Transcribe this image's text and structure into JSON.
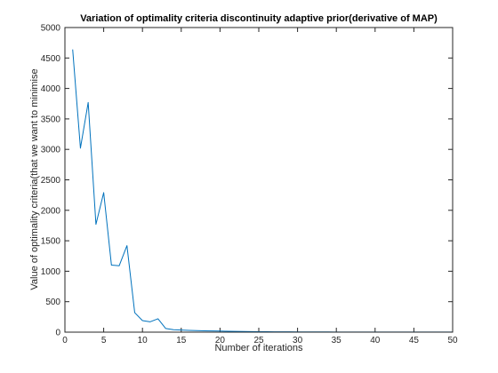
{
  "chart_data": {
    "type": "line",
    "title": "Variation of optimality criteria discontinuity adaptive prior(derivative of MAP)",
    "xlabel": "Number of iterations",
    "ylabel": "Value of optimality criteria(that we want to minimise",
    "xlim": [
      0,
      50
    ],
    "ylim": [
      0,
      5000
    ],
    "xticks": [
      0,
      5,
      10,
      15,
      20,
      25,
      30,
      35,
      40,
      45,
      50
    ],
    "yticks": [
      0,
      500,
      1000,
      1500,
      2000,
      2500,
      3000,
      3500,
      4000,
      4500,
      5000
    ],
    "grid": false,
    "series": [
      {
        "color": "#0072bd",
        "x": [
          1,
          2,
          3,
          4,
          5,
          6,
          7,
          8,
          9,
          10,
          11,
          12,
          13,
          14,
          15,
          16,
          17,
          18,
          19,
          20,
          21,
          22,
          23,
          24,
          25,
          26,
          27,
          28,
          29,
          30,
          31,
          32,
          33,
          34,
          35,
          36,
          37,
          38,
          39,
          40,
          41,
          42,
          43,
          44,
          45,
          46,
          47,
          48,
          49,
          50
        ],
        "y": [
          4640,
          3020,
          3770,
          1770,
          2290,
          1100,
          1090,
          1420,
          320,
          190,
          170,
          220,
          60,
          40,
          35,
          30,
          25,
          22,
          20,
          18,
          15,
          12,
          10,
          9,
          8,
          7,
          6,
          5,
          5,
          4,
          4,
          3,
          3,
          3,
          2,
          2,
          2,
          2,
          1,
          1,
          1,
          1,
          1,
          1,
          1,
          1,
          1,
          1,
          1,
          1
        ]
      }
    ]
  }
}
